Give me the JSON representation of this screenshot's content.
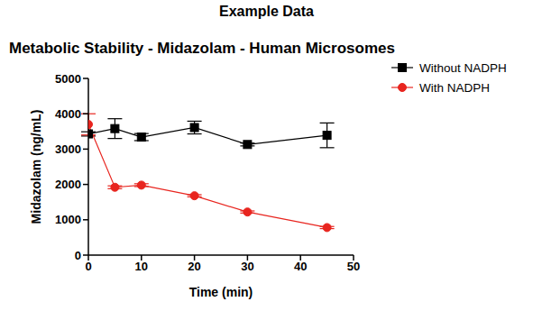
{
  "chart_data": {
    "type": "line",
    "title": "Example Data",
    "subtitle": "Metabolic Stability - Midazolam - Human Microsomes",
    "x_label": "Time (min)",
    "y_label": "Midazolam (ng/mL)",
    "x": [
      0,
      5,
      10,
      20,
      30,
      45
    ],
    "series": [
      {
        "name": "Without NADPH",
        "color": "#000000",
        "marker": "square",
        "values": [
          3430,
          3580,
          3340,
          3610,
          3130,
          3390
        ],
        "error": [
          60,
          280,
          100,
          180,
          40,
          350
        ]
      },
      {
        "name": "With NADPH",
        "color": "#e8251f",
        "marker": "circle",
        "values": [
          3700,
          1920,
          1980,
          1680,
          1220,
          780
        ],
        "error": [
          300,
          40,
          40,
          30,
          30,
          30
        ]
      }
    ],
    "xlim": [
      0,
      50
    ],
    "ylim": [
      0,
      5000
    ],
    "xticks": [
      0,
      10,
      20,
      30,
      40,
      50
    ],
    "yticks": [
      0,
      1000,
      2000,
      3000,
      4000,
      5000
    ],
    "grid": false,
    "legend": "right"
  }
}
